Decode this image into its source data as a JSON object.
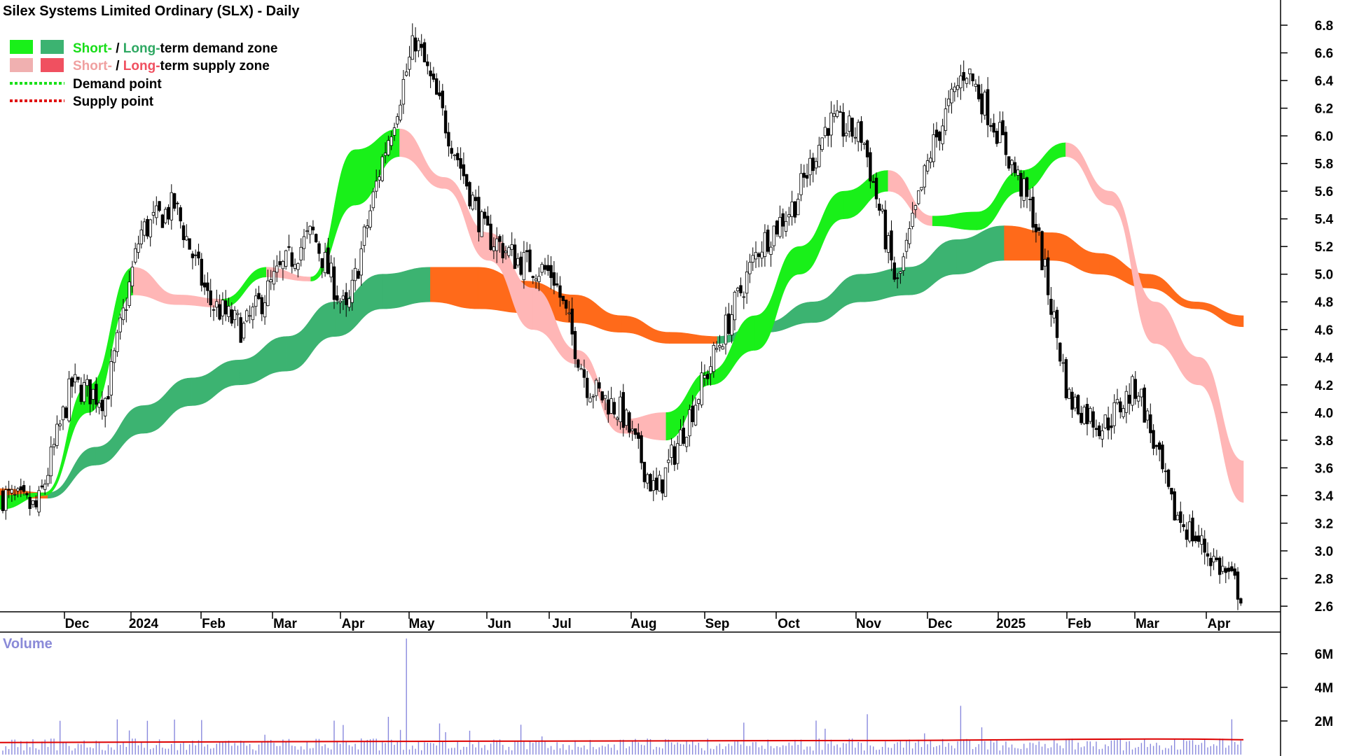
{
  "chart_data": {
    "type": "candlestick",
    "title": "Silex Systems Limited Ordinary (SLX) - Daily",
    "legend": {
      "placement": "top-left",
      "demand_zone": {
        "short": "Short-",
        "sep": " / ",
        "long": "Long-",
        "rest": "term demand zone"
      },
      "supply_zone": {
        "short": "Short-",
        "sep": " / ",
        "long": "Long-",
        "rest": "term supply zone"
      },
      "demand_point": "Demand point",
      "supply_point": "Supply point"
    },
    "colors": {
      "short_demand": "#19f019",
      "long_demand": "#3cb371",
      "short_supply": "#ffb6b6",
      "long_supply": "#ff6a1a",
      "legend_short_supply": "#f0b0b0",
      "legend_long_supply": "#f05060",
      "demand_point": "#19e019",
      "supply_point": "#e01010",
      "volume_bar": "#8888dd",
      "volume_avg": "#dd0000",
      "candle": "#000000"
    },
    "y_axis": {
      "min": 2.6,
      "max": 6.8,
      "ticks": [
        "2.6",
        "2.8",
        "3.0",
        "3.2",
        "3.4",
        "3.6",
        "3.8",
        "4.0",
        "4.2",
        "4.4",
        "4.6",
        "4.8",
        "5.0",
        "5.2",
        "5.4",
        "5.6",
        "5.8",
        "6.0",
        "6.2",
        "6.4",
        "6.6",
        "6.8"
      ]
    },
    "x_axis": {
      "labels": [
        "Dec",
        "2024",
        "Feb",
        "Mar",
        "Apr",
        "May",
        "Jun",
        "Jul",
        "Aug",
        "Sep",
        "Oct",
        "Nov",
        "Dec",
        "2025",
        "Feb",
        "Mar",
        "Apr"
      ]
    },
    "volume": {
      "label": "Volume",
      "ticks": [
        "2M",
        "4M",
        "6M"
      ],
      "approx_avg": 800000,
      "spikes": [
        {
          "month": "May",
          "value": 6900000
        },
        {
          "month": "Dec",
          "value": 2900000
        },
        {
          "month": "Nov",
          "value": 2400000
        },
        {
          "month": "Apr",
          "value": 2100000
        }
      ]
    },
    "price_path": [
      [
        "Nov",
        3.4
      ],
      [
        "Dec",
        3.3
      ],
      [
        "Dec",
        4.2
      ],
      [
        "2024",
        4.1
      ],
      [
        "2024",
        5.3
      ],
      [
        "Feb",
        5.5
      ],
      [
        "Feb",
        4.8
      ],
      [
        "Mar",
        4.6
      ],
      [
        "Mar",
        5.0
      ],
      [
        "Apr",
        5.3
      ],
      [
        "Apr",
        4.7
      ],
      [
        "May",
        5.8
      ],
      [
        "May",
        6.7
      ],
      [
        "Jun",
        6.0
      ],
      [
        "Jun",
        5.3
      ],
      [
        "Jul",
        5.1
      ],
      [
        "Jul",
        5.0
      ],
      [
        "Aug",
        4.2
      ],
      [
        "Aug",
        4.0
      ],
      [
        "Sep",
        3.4
      ],
      [
        "Sep",
        4.0
      ],
      [
        "Oct",
        4.6
      ],
      [
        "Oct",
        5.2
      ],
      [
        "Nov",
        5.5
      ],
      [
        "Nov",
        6.1
      ],
      [
        "Dec",
        6.0
      ],
      [
        "Dec",
        4.9
      ],
      [
        "2025",
        5.9
      ],
      [
        "2025",
        6.5
      ],
      [
        "Feb",
        6.0
      ],
      [
        "Feb",
        5.4
      ],
      [
        "Mar",
        4.1
      ],
      [
        "Mar",
        3.9
      ],
      [
        "Apr",
        4.2
      ],
      [
        "Apr",
        3.3
      ],
      [
        "Apr",
        3.0
      ],
      [
        "Apr",
        2.7
      ]
    ],
    "short_term_zone": [
      [
        "Nov",
        3.4,
        3.3
      ],
      [
        "Dec",
        3.42,
        3.4
      ],
      [
        "2024",
        4.2,
        4.0
      ],
      [
        "Feb",
        5.05,
        4.85
      ],
      [
        "Mar",
        4.85,
        4.78
      ],
      [
        "Apr",
        4.82,
        4.76
      ],
      [
        "Apr",
        5.05,
        4.98
      ],
      [
        "May",
        4.98,
        4.95
      ],
      [
        "May",
        5.9,
        5.5
      ],
      [
        "Jun",
        6.05,
        5.85
      ],
      [
        "Jun",
        5.7,
        5.62
      ],
      [
        "Jul",
        5.3,
        5.1
      ],
      [
        "Aug",
        4.9,
        4.6
      ],
      [
        "Aug",
        4.45,
        4.35
      ],
      [
        "Sep",
        3.95,
        3.85
      ],
      [
        "Sep",
        4.0,
        3.8
      ],
      [
        "Oct",
        4.3,
        4.2
      ],
      [
        "Oct",
        4.7,
        4.45
      ],
      [
        "Nov",
        5.2,
        5.0
      ],
      [
        "Nov",
        5.6,
        5.4
      ],
      [
        "Dec",
        5.75,
        5.6
      ],
      [
        "Dec",
        5.42,
        5.35
      ],
      [
        "2025",
        5.45,
        5.32
      ],
      [
        "2025",
        5.75,
        5.6
      ],
      [
        "Feb",
        5.95,
        5.85
      ],
      [
        "Feb",
        5.6,
        5.5
      ],
      [
        "Mar",
        4.8,
        4.5
      ],
      [
        "Mar",
        4.4,
        4.2
      ],
      [
        "Apr",
        3.65,
        3.35
      ]
    ],
    "long_term_zone": [
      [
        "Nov",
        3.45,
        3.38
      ],
      [
        "Dec",
        3.42,
        3.38
      ],
      [
        "2024",
        3.75,
        3.62
      ],
      [
        "Feb",
        4.05,
        3.85
      ],
      [
        "Mar",
        4.25,
        4.05
      ],
      [
        "Apr",
        4.38,
        4.2
      ],
      [
        "May",
        4.55,
        4.3
      ],
      [
        "May",
        4.8,
        4.55
      ],
      [
        "Jun",
        5.0,
        4.75
      ],
      [
        "Jul",
        5.05,
        4.8
      ],
      [
        "Jul",
        5.05,
        4.75
      ],
      [
        "Aug",
        4.95,
        4.72
      ],
      [
        "Aug",
        4.85,
        4.65
      ],
      [
        "Sep",
        4.7,
        4.58
      ],
      [
        "Oct",
        4.58,
        4.5
      ],
      [
        "Oct",
        4.55,
        4.5
      ],
      [
        "Nov",
        4.65,
        4.58
      ],
      [
        "Nov",
        4.8,
        4.65
      ],
      [
        "Dec",
        5.0,
        4.8
      ],
      [
        "2025",
        5.05,
        4.85
      ],
      [
        "2025",
        5.25,
        5.0
      ],
      [
        "Feb",
        5.35,
        5.1
      ],
      [
        "Feb",
        5.3,
        5.1
      ],
      [
        "Mar",
        5.15,
        5.0
      ],
      [
        "Mar",
        5.0,
        4.9
      ],
      [
        "Apr",
        4.8,
        4.75
      ],
      [
        "Apr",
        4.7,
        4.62
      ]
    ]
  }
}
